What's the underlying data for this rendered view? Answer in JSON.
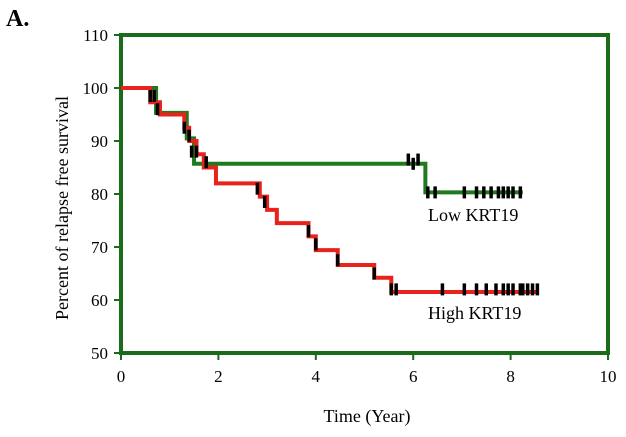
{
  "panel_label": "A.",
  "chart_data": {
    "type": "line",
    "subtype": "kaplan-meier step curve",
    "title": "",
    "xlabel": "Time (Year)",
    "ylabel": "Percent of relapse free survival",
    "xlim": [
      0,
      10
    ],
    "ylim": [
      50,
      110
    ],
    "xticks": [
      0,
      2,
      4,
      6,
      8,
      10
    ],
    "yticks": [
      50,
      60,
      70,
      80,
      90,
      100,
      110
    ],
    "grid": false,
    "frame_color": "#1a6b1a",
    "censor_color": "#000000",
    "series": [
      {
        "color": "#1f7a1f",
        "label": "Low KRT19",
        "steps": [
          [
            0,
            100
          ],
          [
            0.72,
            95.3
          ],
          [
            1.35,
            90.5
          ],
          [
            1.5,
            85.7
          ],
          [
            6.25,
            80.3
          ],
          [
            8.25,
            80.3
          ]
        ],
        "censored": [
          [
            0.68,
            98.5
          ],
          [
            1.3,
            92.5
          ],
          [
            1.45,
            88
          ],
          [
            5.9,
            86.5
          ],
          [
            6.0,
            85.7
          ],
          [
            6.1,
            86.5
          ],
          [
            6.3,
            80.3
          ],
          [
            6.45,
            80.3
          ],
          [
            7.05,
            80.3
          ],
          [
            7.3,
            80.3
          ],
          [
            7.45,
            80.3
          ],
          [
            7.6,
            80.3
          ],
          [
            7.75,
            80.3
          ],
          [
            7.85,
            80.3
          ],
          [
            7.95,
            80.3
          ],
          [
            8.05,
            80.3
          ],
          [
            8.2,
            80.3
          ]
        ]
      },
      {
        "color": "#e8231c",
        "label": "High KRT19",
        "steps": [
          [
            0,
            100
          ],
          [
            0.6,
            97.3
          ],
          [
            0.8,
            95.0
          ],
          [
            1.3,
            92.5
          ],
          [
            1.4,
            90.0
          ],
          [
            1.55,
            87.5
          ],
          [
            1.7,
            85.0
          ],
          [
            1.95,
            82.0
          ],
          [
            2.85,
            79.5
          ],
          [
            3.0,
            77.0
          ],
          [
            3.2,
            74.5
          ],
          [
            3.85,
            72.0
          ],
          [
            4.0,
            69.4
          ],
          [
            4.45,
            66.6
          ],
          [
            5.2,
            64.2
          ],
          [
            5.55,
            61.5
          ],
          [
            8.55,
            61.5
          ]
        ],
        "censored": [
          [
            0.6,
            98.5
          ],
          [
            0.75,
            96
          ],
          [
            1.4,
            91
          ],
          [
            1.55,
            88
          ],
          [
            1.75,
            86
          ],
          [
            2.8,
            81
          ],
          [
            2.95,
            78.5
          ],
          [
            3.85,
            73
          ],
          [
            4.0,
            70.5
          ],
          [
            4.45,
            67.5
          ],
          [
            5.2,
            65
          ],
          [
            5.55,
            62
          ],
          [
            5.65,
            62
          ],
          [
            6.6,
            62
          ],
          [
            7.05,
            62
          ],
          [
            7.3,
            62
          ],
          [
            7.5,
            62
          ],
          [
            7.7,
            62
          ],
          [
            7.85,
            62
          ],
          [
            7.95,
            62
          ],
          [
            8.05,
            62
          ],
          [
            8.2,
            62
          ],
          [
            8.25,
            62
          ],
          [
            8.35,
            62
          ],
          [
            8.45,
            62
          ],
          [
            8.55,
            62
          ]
        ]
      }
    ]
  }
}
